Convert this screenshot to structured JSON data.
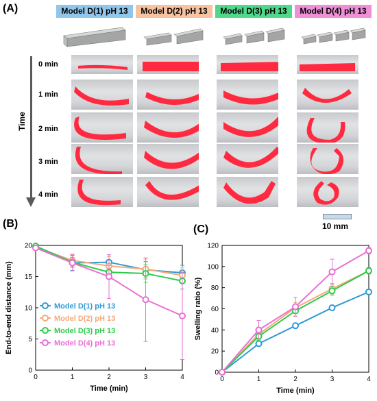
{
  "panel_a": {
    "letter": "(A)",
    "models": [
      {
        "label": "Model D(1) pH 13",
        "color": "#92c5ea",
        "segments": 1
      },
      {
        "label": "Model D(2) pH 13",
        "color": "#f6c2a0",
        "segments": 2
      },
      {
        "label": "Model D(3) pH 13",
        "color": "#4fd88a",
        "segments": 3
      },
      {
        "label": "Model D(4) pH 13",
        "color": "#ee8fd8",
        "segments": 4
      }
    ],
    "time_axis_label": "Time",
    "rows": [
      "0 min",
      "1 min",
      "2 min",
      "3 min",
      "4 min"
    ],
    "scale_bar_label": "10 mm"
  },
  "panel_b": {
    "letter": "(B)",
    "chart_data": {
      "type": "line",
      "xlabel": "Time (min)",
      "ylabel": "End-to-end distance (mm)",
      "x": [
        0,
        1,
        2,
        3,
        4
      ],
      "xlim": [
        0,
        4
      ],
      "ylim": [
        0,
        20
      ],
      "xticks": [
        "0",
        "1",
        "2",
        "3",
        "4"
      ],
      "yticks": [
        "0",
        "5",
        "10",
        "15",
        "20"
      ],
      "legend_position": "bottom-left",
      "series": [
        {
          "name": "Model D(1) pH 13",
          "color": "#2e9bd6",
          "values": [
            19.8,
            17.2,
            17.3,
            16.1,
            15.6
          ],
          "errors": [
            0.3,
            1.2,
            1.2,
            1.3,
            1.2
          ]
        },
        {
          "name": "Model D(2) pH 13",
          "color": "#f4a97c",
          "values": [
            19.7,
            17.6,
            16.7,
            16.2,
            15.2
          ],
          "errors": [
            0.3,
            1.0,
            1.5,
            1.6,
            1.2
          ]
        },
        {
          "name": "Model D(3) pH 13",
          "color": "#2ccb4a",
          "values": [
            19.9,
            17.3,
            15.7,
            15.5,
            14.3
          ],
          "errors": [
            0.3,
            0.8,
            1.1,
            1.4,
            1.3
          ]
        },
        {
          "name": "Model D(4) pH 13",
          "color": "#e96fd6",
          "values": [
            19.6,
            17.2,
            15.0,
            11.3,
            8.7
          ],
          "errors": [
            0.3,
            1.3,
            3.5,
            6.7,
            7.0
          ]
        }
      ]
    }
  },
  "panel_c": {
    "letter": "(C)",
    "chart_data": {
      "type": "line",
      "xlabel": "Time (min)",
      "ylabel": "Swelling ratio (%)",
      "x": [
        0,
        1,
        2,
        3,
        4
      ],
      "xlim": [
        0,
        4
      ],
      "ylim": [
        0,
        120
      ],
      "xticks": [
        "0",
        "1",
        "2",
        "3",
        "4"
      ],
      "yticks": [
        "0",
        "20",
        "40",
        "60",
        "80",
        "100",
        "120"
      ],
      "series": [
        {
          "name": "Model D(1) pH 13",
          "color": "#2e9bd6",
          "values": [
            0,
            27,
            44,
            61,
            76
          ],
          "errors": [
            0,
            2,
            2,
            2,
            2
          ]
        },
        {
          "name": "Model D(2) pH 13",
          "color": "#f4a97c",
          "values": [
            0,
            36,
            61,
            79,
            96
          ],
          "errors": [
            0,
            4,
            5,
            5,
            3
          ]
        },
        {
          "name": "Model D(3) pH 13",
          "color": "#2ccb4a",
          "values": [
            0,
            34,
            58,
            77,
            96
          ],
          "errors": [
            0,
            4,
            5,
            4,
            3
          ]
        },
        {
          "name": "Model D(4) pH 13",
          "color": "#e96fd6",
          "values": [
            0,
            40,
            62,
            95,
            115
          ],
          "errors": [
            0,
            9,
            9,
            12,
            3
          ]
        }
      ]
    }
  }
}
